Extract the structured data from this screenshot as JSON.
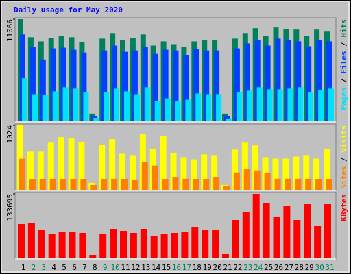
{
  "chart_data": [
    {
      "type": "bar",
      "title": "Daily usage for May 2020",
      "legend_separator": "/",
      "ylim": [
        0,
        11066
      ],
      "yticks": [
        11066
      ],
      "series": [
        {
          "name": "Hits",
          "color": "#00805c",
          "values": [
            11066,
            9110,
            8657,
            9034,
            9260,
            9110,
            8582,
            828,
            8958,
            9561,
            8808,
            9034,
            9410,
            8206,
            8657,
            8356,
            8055,
            8657,
            8808,
            8808,
            828,
            8958,
            9561,
            10088,
            9260,
            10163,
            10012,
            9937,
            9260,
            9937,
            9787
          ]
        },
        {
          "name": "Files",
          "color": "#0040ff",
          "values": [
            9410,
            8055,
            6700,
            7904,
            7980,
            7754,
            7453,
            527,
            7679,
            8206,
            7528,
            7679,
            8055,
            7302,
            7754,
            7679,
            7152,
            7829,
            7679,
            7679,
            527,
            7904,
            8432,
            8808,
            8206,
            8958,
            8808,
            8657,
            8130,
            8808,
            8657
          ]
        },
        {
          "name": "Pages",
          "color": "#00e0ff",
          "values": [
            4670,
            2935,
            2860,
            3237,
            3689,
            3538,
            3162,
            376,
            3162,
            3538,
            3237,
            2936,
            3689,
            2183,
            2484,
            2183,
            2334,
            3011,
            2936,
            2936,
            301,
            3162,
            3312,
            3689,
            3463,
            3463,
            3538,
            3689,
            3162,
            3388,
            3538
          ]
        }
      ]
    },
    {
      "type": "bar",
      "legend_separator": "/",
      "ylim": [
        0,
        1024
      ],
      "yticks": [
        1024
      ],
      "series": [
        {
          "name": "Visits",
          "color": "#ffff00",
          "values": [
            1024,
            606,
            606,
            749,
            837,
            815,
            760,
            110,
            716,
            804,
            573,
            540,
            881,
            650,
            859,
            584,
            518,
            484,
            562,
            540,
            77,
            639,
            749,
            705,
            518,
            495,
            495,
            528,
            540,
            495,
            650
          ]
        },
        {
          "name": "Sites",
          "color": "#ff8000",
          "values": [
            495,
            165,
            165,
            176,
            165,
            165,
            165,
            77,
            165,
            176,
            165,
            154,
            440,
            385,
            165,
            198,
            176,
            165,
            165,
            198,
            66,
            275,
            330,
            308,
            264,
            176,
            176,
            176,
            176,
            165,
            165
          ]
        }
      ]
    },
    {
      "type": "bar",
      "ylim": [
        0,
        133695
      ],
      "yticks": [
        133695
      ],
      "categories": [
        "1",
        "2",
        "3",
        "4",
        "5",
        "6",
        "7",
        "8",
        "9",
        "10",
        "11",
        "12",
        "13",
        "14",
        "15",
        "16",
        "17",
        "18",
        "19",
        "20",
        "21",
        "22",
        "23",
        "24",
        "25",
        "26",
        "27",
        "28",
        "29",
        "30",
        "31"
      ],
      "category_colors": [
        "#000000",
        "#00805c",
        "#00805c",
        "#000000",
        "#000000",
        "#000000",
        "#000000",
        "#000000",
        "#00805c",
        "#00805c",
        "#000000",
        "#000000",
        "#000000",
        "#000000",
        "#000000",
        "#00805c",
        "#00805c",
        "#000000",
        "#000000",
        "#000000",
        "#000000",
        "#000000",
        "#00805c",
        "#00805c",
        "#000000",
        "#000000",
        "#000000",
        "#000000",
        "#000000",
        "#00805c",
        "#00805c"
      ],
      "series": [
        {
          "name": "KBytes",
          "color": "#ff0000",
          "values": [
            71114,
            72536,
            58316,
            51204,
            55470,
            55470,
            52626,
            7112,
            51204,
            59738,
            56892,
            52626,
            59738,
            46937,
            51204,
            52626,
            54048,
            64004,
            58316,
            58316,
            8534,
            79650,
            96718,
            133695,
            115210,
            85337,
            109518,
            79650,
            112364,
            66850,
            112364
          ]
        }
      ]
    }
  ]
}
